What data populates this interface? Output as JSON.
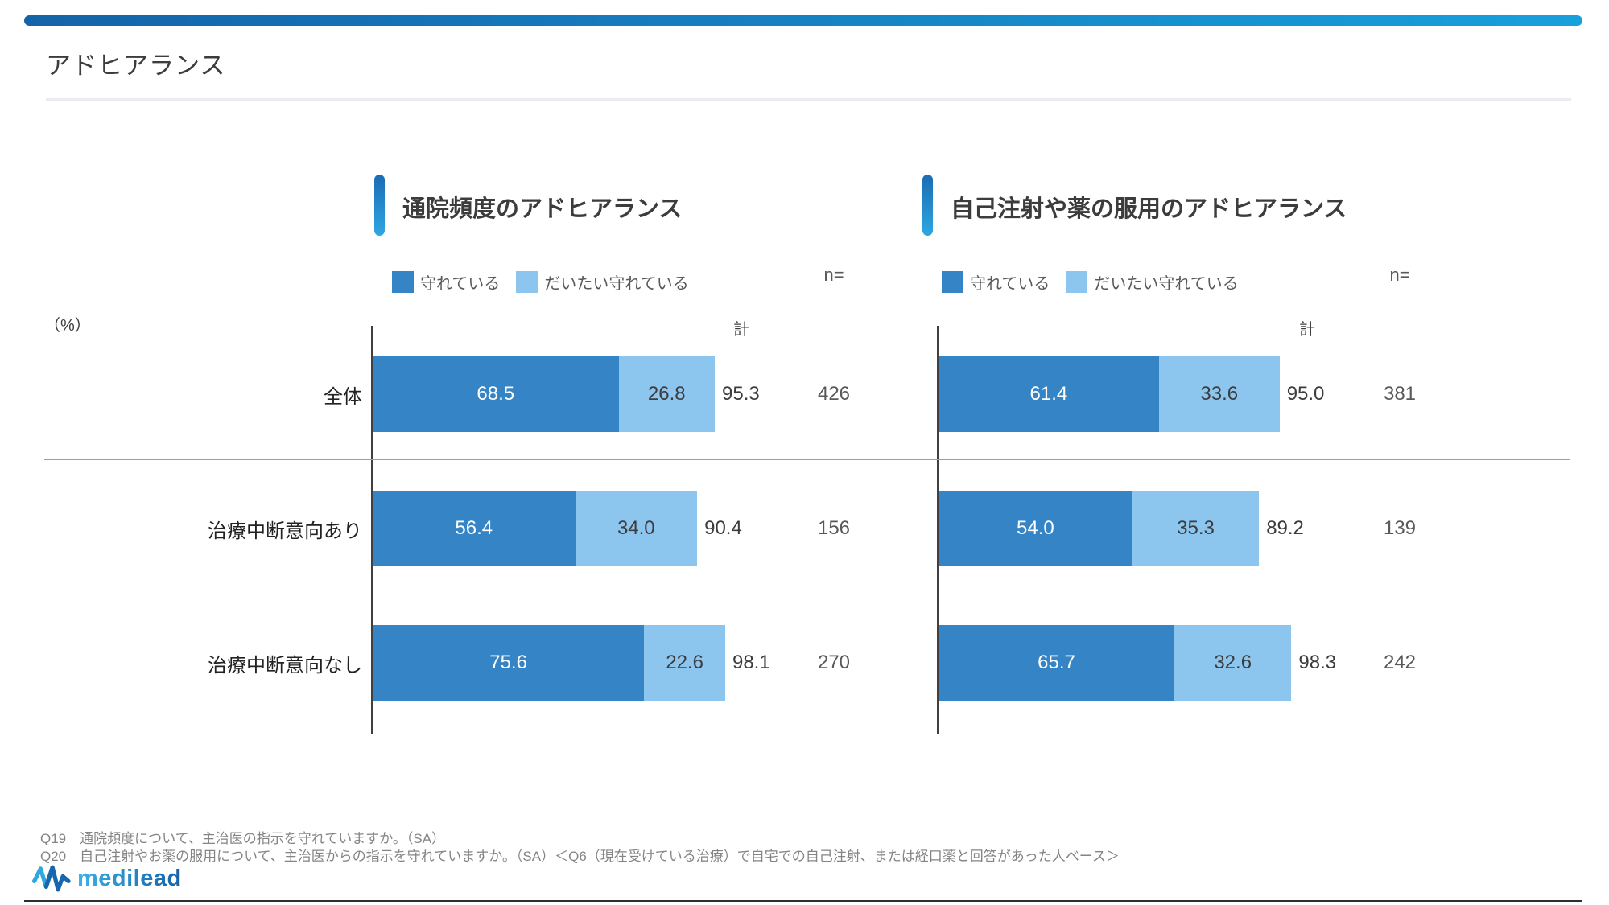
{
  "page": {
    "title": "アドヒアランス",
    "pct_label": "（%）"
  },
  "colors": {
    "dark": "#3585C6",
    "light": "#8CC6EF",
    "accent_bar_top": "#1A6CB4",
    "accent_bar_bottom": "#2FA6E2",
    "topbar_left": "#1463A8",
    "topbar_right": "#18A0DC"
  },
  "chart_data": [
    {
      "type": "bar",
      "orientation": "horizontal",
      "stacked": true,
      "title": "通院頻度のアドヒアランス",
      "unit": "%",
      "xlim": [
        0,
        100
      ],
      "legend_position": "top",
      "total_label": "計",
      "n_label": "n=",
      "categories": [
        "全体",
        "治療中断意向あり",
        "治療中断意向なし"
      ],
      "series": [
        {
          "name": "守れている",
          "values": [
            68.5,
            56.4,
            75.6
          ]
        },
        {
          "name": "だいたい守れている",
          "values": [
            26.8,
            34.0,
            22.6
          ]
        }
      ],
      "totals": [
        95.3,
        90.4,
        98.1
      ],
      "n": [
        426,
        156,
        270
      ]
    },
    {
      "type": "bar",
      "orientation": "horizontal",
      "stacked": true,
      "title": "自己注射や薬の服用のアドヒアランス",
      "unit": "%",
      "xlim": [
        0,
        100
      ],
      "legend_position": "top",
      "total_label": "計",
      "n_label": "n=",
      "categories": [
        "全体",
        "治療中断意向あり",
        "治療中断意向なし"
      ],
      "series": [
        {
          "name": "守れている",
          "values": [
            61.4,
            54.0,
            65.7
          ]
        },
        {
          "name": "だいたい守れている",
          "values": [
            33.6,
            35.3,
            32.6
          ]
        }
      ],
      "totals": [
        95.0,
        89.2,
        98.3
      ],
      "n": [
        381,
        139,
        242
      ]
    }
  ],
  "footer": {
    "q19": "Q19　通院頻度について、主治医の指示を守れていますか。（SA）",
    "q20": "Q20　自己注射やお薬の服用について、主治医からの指示を守れていますか。（SA）＜Q6（現在受けている治療）で自宅での自己注射、または経口薬と回答があった人ベース＞",
    "logo_text": "medilead"
  }
}
